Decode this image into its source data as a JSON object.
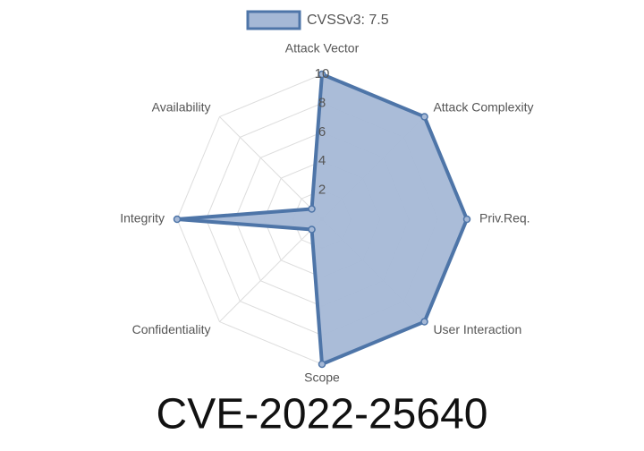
{
  "chart_data": {
    "type": "radar",
    "title": "CVE-2022-25640",
    "categories": [
      "Attack Vector",
      "Attack Complexity",
      "Priv.Req.",
      "User Interaction",
      "Scope",
      "Confidentiality",
      "Integrity",
      "Availability"
    ],
    "series": [
      {
        "name": "CVSSv3: 7.5",
        "color": "#4e75a8",
        "fill": "#a5b8d6",
        "values": [
          10,
          10,
          10,
          10,
          10,
          1,
          10,
          1
        ]
      }
    ],
    "ylim": [
      0,
      10
    ],
    "yticks": [
      2,
      4,
      6,
      8,
      10
    ],
    "grid": true,
    "legend": "top"
  }
}
